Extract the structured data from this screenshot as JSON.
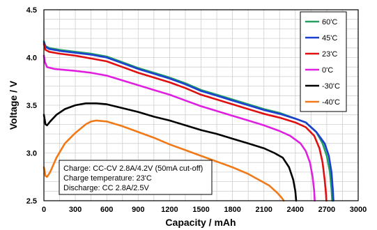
{
  "chart_data": {
    "type": "line",
    "xlabel": "Capacity / mAh",
    "ylabel": "Voltage / V",
    "xlim": [
      0,
      3000
    ],
    "ylim": [
      2.5,
      4.5
    ],
    "xticks": [
      0,
      300,
      600,
      900,
      1200,
      1500,
      1800,
      2100,
      2400,
      2700,
      3000
    ],
    "yticks": [
      2.5,
      3.0,
      3.5,
      4.0,
      4.5
    ],
    "ytick_labels": [
      "2.5",
      "3.0",
      "3.5",
      "4.0",
      "4.5"
    ],
    "grid": true,
    "legend_position": "top-right",
    "series": [
      {
        "name": "60'C",
        "color": "#22a060",
        "points": [
          [
            0,
            4.17
          ],
          [
            15,
            4.12
          ],
          [
            50,
            4.1
          ],
          [
            150,
            4.08
          ],
          [
            300,
            4.06
          ],
          [
            450,
            4.04
          ],
          [
            600,
            4.01
          ],
          [
            750,
            3.95
          ],
          [
            900,
            3.89
          ],
          [
            1050,
            3.84
          ],
          [
            1200,
            3.79
          ],
          [
            1350,
            3.73
          ],
          [
            1500,
            3.66
          ],
          [
            1650,
            3.61
          ],
          [
            1800,
            3.56
          ],
          [
            1950,
            3.51
          ],
          [
            2100,
            3.46
          ],
          [
            2250,
            3.42
          ],
          [
            2400,
            3.36
          ],
          [
            2500,
            3.32
          ],
          [
            2600,
            3.22
          ],
          [
            2660,
            3.1
          ],
          [
            2700,
            2.97
          ],
          [
            2730,
            2.8
          ],
          [
            2745,
            2.62
          ],
          [
            2752,
            2.5
          ]
        ]
      },
      {
        "name": "45'C",
        "color": "#1c3fd0",
        "points": [
          [
            0,
            4.16
          ],
          [
            15,
            4.11
          ],
          [
            50,
            4.09
          ],
          [
            150,
            4.07
          ],
          [
            300,
            4.05
          ],
          [
            450,
            4.03
          ],
          [
            600,
            4.0
          ],
          [
            750,
            3.94
          ],
          [
            900,
            3.88
          ],
          [
            1050,
            3.83
          ],
          [
            1200,
            3.78
          ],
          [
            1350,
            3.72
          ],
          [
            1500,
            3.65
          ],
          [
            1650,
            3.6
          ],
          [
            1800,
            3.55
          ],
          [
            1950,
            3.5
          ],
          [
            2100,
            3.45
          ],
          [
            2250,
            3.41
          ],
          [
            2400,
            3.36
          ],
          [
            2500,
            3.32
          ],
          [
            2600,
            3.22
          ],
          [
            2680,
            3.1
          ],
          [
            2720,
            2.97
          ],
          [
            2745,
            2.8
          ],
          [
            2758,
            2.62
          ],
          [
            2764,
            2.5
          ]
        ]
      },
      {
        "name": "23'C",
        "color": "#e01010",
        "points": [
          [
            0,
            4.14
          ],
          [
            15,
            4.08
          ],
          [
            50,
            4.06
          ],
          [
            150,
            4.04
          ],
          [
            300,
            4.02
          ],
          [
            450,
            3.99
          ],
          [
            600,
            3.96
          ],
          [
            750,
            3.9
          ],
          [
            900,
            3.84
          ],
          [
            1050,
            3.79
          ],
          [
            1200,
            3.74
          ],
          [
            1350,
            3.68
          ],
          [
            1500,
            3.61
          ],
          [
            1650,
            3.56
          ],
          [
            1800,
            3.51
          ],
          [
            1950,
            3.46
          ],
          [
            2100,
            3.41
          ],
          [
            2250,
            3.37
          ],
          [
            2400,
            3.32
          ],
          [
            2500,
            3.27
          ],
          [
            2580,
            3.18
          ],
          [
            2630,
            3.05
          ],
          [
            2660,
            2.9
          ],
          [
            2680,
            2.72
          ],
          [
            2692,
            2.58
          ],
          [
            2697,
            2.5
          ]
        ]
      },
      {
        "name": "0'C",
        "color": "#e020e0",
        "points": [
          [
            0,
            4.02
          ],
          [
            10,
            3.95
          ],
          [
            30,
            3.9
          ],
          [
            100,
            3.88
          ],
          [
            300,
            3.86
          ],
          [
            450,
            3.84
          ],
          [
            600,
            3.81
          ],
          [
            750,
            3.76
          ],
          [
            900,
            3.71
          ],
          [
            1050,
            3.66
          ],
          [
            1200,
            3.61
          ],
          [
            1350,
            3.55
          ],
          [
            1500,
            3.49
          ],
          [
            1650,
            3.44
          ],
          [
            1800,
            3.39
          ],
          [
            1950,
            3.34
          ],
          [
            2100,
            3.29
          ],
          [
            2250,
            3.23
          ],
          [
            2350,
            3.18
          ],
          [
            2450,
            3.1
          ],
          [
            2500,
            3.02
          ],
          [
            2540,
            2.9
          ],
          [
            2565,
            2.75
          ],
          [
            2580,
            2.6
          ],
          [
            2585,
            2.5
          ]
        ]
      },
      {
        "name": "-30'C",
        "color": "#000000",
        "points": [
          [
            0,
            3.4
          ],
          [
            15,
            3.3
          ],
          [
            30,
            3.29
          ],
          [
            60,
            3.33
          ],
          [
            120,
            3.4
          ],
          [
            200,
            3.46
          ],
          [
            300,
            3.5
          ],
          [
            400,
            3.52
          ],
          [
            500,
            3.52
          ],
          [
            600,
            3.51
          ],
          [
            750,
            3.47
          ],
          [
            900,
            3.43
          ],
          [
            1050,
            3.38
          ],
          [
            1200,
            3.34
          ],
          [
            1350,
            3.29
          ],
          [
            1500,
            3.24
          ],
          [
            1650,
            3.2
          ],
          [
            1800,
            3.15
          ],
          [
            1950,
            3.1
          ],
          [
            2100,
            3.05
          ],
          [
            2200,
            3.0
          ],
          [
            2280,
            2.95
          ],
          [
            2340,
            2.85
          ],
          [
            2380,
            2.72
          ],
          [
            2400,
            2.6
          ],
          [
            2408,
            2.5
          ]
        ]
      },
      {
        "name": "-40'C",
        "color": "#f07a18",
        "points": [
          [
            0,
            2.85
          ],
          [
            15,
            2.76
          ],
          [
            30,
            2.75
          ],
          [
            60,
            2.8
          ],
          [
            120,
            2.95
          ],
          [
            200,
            3.1
          ],
          [
            300,
            3.21
          ],
          [
            400,
            3.3
          ],
          [
            450,
            3.33
          ],
          [
            500,
            3.34
          ],
          [
            600,
            3.33
          ],
          [
            750,
            3.28
          ],
          [
            900,
            3.22
          ],
          [
            1050,
            3.16
          ],
          [
            1200,
            3.09
          ],
          [
            1350,
            3.03
          ],
          [
            1500,
            2.97
          ],
          [
            1650,
            2.91
          ],
          [
            1800,
            2.85
          ],
          [
            1950,
            2.78
          ],
          [
            2050,
            2.72
          ],
          [
            2150,
            2.66
          ],
          [
            2230,
            2.58
          ],
          [
            2270,
            2.53
          ],
          [
            2290,
            2.5
          ]
        ]
      }
    ]
  },
  "notes": [
    "Charge: CC-CV 2.8A/4.2V (50mA cut-off)",
    "Charge temperature: 23'C",
    "Discharge: CC 2.8A/2.5V"
  ]
}
